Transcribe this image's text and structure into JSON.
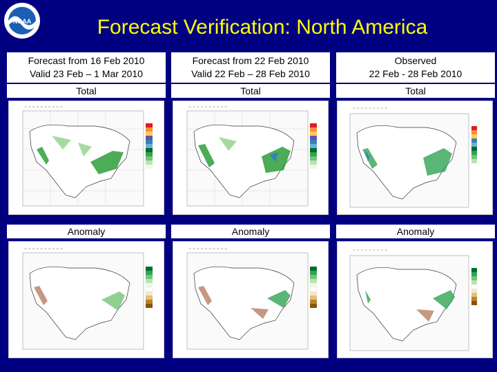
{
  "title": "Forecast Verification: North America",
  "logo": {
    "text": "NOAA",
    "icon": "noaa-logo-icon"
  },
  "columns": [
    {
      "line1": "Forecast from 16 Feb 2010",
      "line2": "Valid 23 Feb – 1 Mar 2010"
    },
    {
      "line1": "Forecast from 22 Feb 2010",
      "line2": "Valid 22 Feb – 28 Feb 2010"
    },
    {
      "line1": "Observed",
      "line2": "22 Feb - 28 Feb 2010"
    }
  ],
  "sections": {
    "total": "Total",
    "anomaly": "Anomaly"
  },
  "colors": {
    "background": "#000080",
    "title": "#ffff00",
    "precip_green": "#2e9e3a",
    "precip_light": "#a6dba0",
    "dry_brown": "#a0522d"
  }
}
